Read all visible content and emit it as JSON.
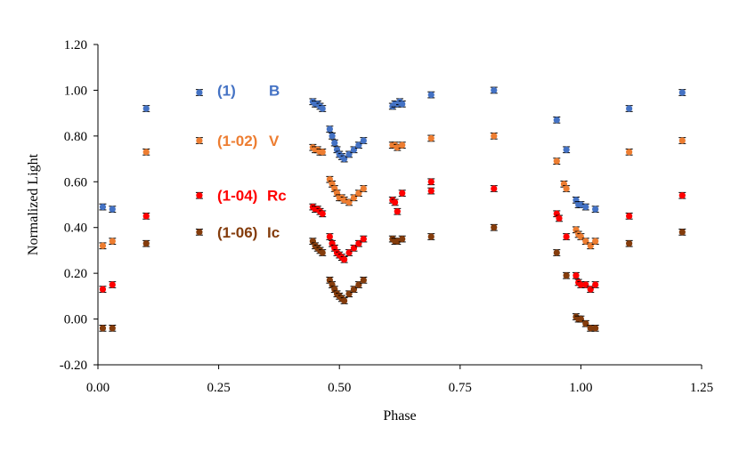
{
  "chart_data": {
    "type": "scatter",
    "title": "",
    "xlabel": "Phase",
    "ylabel": "Normalized Light",
    "xlim": [
      0.0,
      1.25
    ],
    "ylim": [
      -0.2,
      1.2
    ],
    "grid": false,
    "xticks": [
      "0.00",
      "0.25",
      "0.50",
      "0.75",
      "1.00",
      "1.25"
    ],
    "yticks": [
      "-0.20",
      "0.00",
      "0.20",
      "0.40",
      "0.60",
      "0.80",
      "1.00",
      "1.20"
    ],
    "legend": [
      {
        "label": "(1)",
        "band": "B",
        "color": "#4472C4"
      },
      {
        "label": "(1-02)",
        "band": "V",
        "color": "#ED7D31"
      },
      {
        "label": "(1-04)",
        "band": "Rc",
        "color": "#FF0000"
      },
      {
        "label": "(1-06)",
        "band": "Ic",
        "color": "#843C0C"
      }
    ],
    "series": [
      {
        "name": "B (1)",
        "color": "#4472C4",
        "points": [
          [
            0.01,
            0.49
          ],
          [
            0.03,
            0.48
          ],
          [
            0.1,
            0.92
          ],
          [
            0.21,
            0.99
          ],
          [
            0.445,
            0.95
          ],
          [
            0.45,
            0.94
          ],
          [
            0.455,
            0.94
          ],
          [
            0.46,
            0.93
          ],
          [
            0.465,
            0.92
          ],
          [
            0.48,
            0.83
          ],
          [
            0.485,
            0.8
          ],
          [
            0.49,
            0.77
          ],
          [
            0.495,
            0.74
          ],
          [
            0.5,
            0.72
          ],
          [
            0.505,
            0.71
          ],
          [
            0.51,
            0.7
          ],
          [
            0.52,
            0.72
          ],
          [
            0.53,
            0.74
          ],
          [
            0.54,
            0.76
          ],
          [
            0.55,
            0.78
          ],
          [
            0.61,
            0.93
          ],
          [
            0.615,
            0.94
          ],
          [
            0.62,
            0.94
          ],
          [
            0.625,
            0.95
          ],
          [
            0.63,
            0.94
          ],
          [
            0.69,
            0.98
          ],
          [
            0.82,
            1.0
          ],
          [
            0.95,
            0.87
          ],
          [
            0.97,
            0.74
          ],
          [
            0.99,
            0.52
          ],
          [
            0.995,
            0.5
          ],
          [
            1.0,
            0.5
          ],
          [
            1.01,
            0.49
          ],
          [
            1.03,
            0.48
          ],
          [
            1.1,
            0.92
          ],
          [
            1.21,
            0.99
          ]
        ]
      },
      {
        "name": "V (1-02)",
        "color": "#ED7D31",
        "points": [
          [
            0.01,
            0.32
          ],
          [
            0.03,
            0.34
          ],
          [
            0.1,
            0.73
          ],
          [
            0.21,
            0.78
          ],
          [
            0.445,
            0.75
          ],
          [
            0.45,
            0.74
          ],
          [
            0.455,
            0.74
          ],
          [
            0.46,
            0.73
          ],
          [
            0.465,
            0.73
          ],
          [
            0.48,
            0.61
          ],
          [
            0.485,
            0.59
          ],
          [
            0.49,
            0.57
          ],
          [
            0.495,
            0.55
          ],
          [
            0.5,
            0.53
          ],
          [
            0.505,
            0.53
          ],
          [
            0.51,
            0.52
          ],
          [
            0.52,
            0.51
          ],
          [
            0.53,
            0.53
          ],
          [
            0.54,
            0.55
          ],
          [
            0.55,
            0.57
          ],
          [
            0.61,
            0.76
          ],
          [
            0.615,
            0.76
          ],
          [
            0.62,
            0.75
          ],
          [
            0.63,
            0.76
          ],
          [
            0.69,
            0.79
          ],
          [
            0.82,
            0.8
          ],
          [
            0.95,
            0.69
          ],
          [
            0.965,
            0.59
          ],
          [
            0.97,
            0.57
          ],
          [
            0.99,
            0.39
          ],
          [
            0.995,
            0.37
          ],
          [
            1.0,
            0.36
          ],
          [
            1.01,
            0.34
          ],
          [
            1.02,
            0.32
          ],
          [
            1.03,
            0.34
          ],
          [
            1.1,
            0.73
          ],
          [
            1.21,
            0.78
          ]
        ]
      },
      {
        "name": "Rc (1-04)",
        "color": "#FF0000",
        "points": [
          [
            0.01,
            0.13
          ],
          [
            0.03,
            0.15
          ],
          [
            0.1,
            0.45
          ],
          [
            0.21,
            0.54
          ],
          [
            0.445,
            0.49
          ],
          [
            0.45,
            0.48
          ],
          [
            0.455,
            0.48
          ],
          [
            0.46,
            0.47
          ],
          [
            0.465,
            0.46
          ],
          [
            0.48,
            0.36
          ],
          [
            0.485,
            0.33
          ],
          [
            0.49,
            0.31
          ],
          [
            0.495,
            0.29
          ],
          [
            0.5,
            0.28
          ],
          [
            0.505,
            0.27
          ],
          [
            0.51,
            0.26
          ],
          [
            0.52,
            0.29
          ],
          [
            0.53,
            0.31
          ],
          [
            0.54,
            0.33
          ],
          [
            0.55,
            0.35
          ],
          [
            0.61,
            0.52
          ],
          [
            0.615,
            0.51
          ],
          [
            0.62,
            0.47
          ],
          [
            0.63,
            0.55
          ],
          [
            0.69,
            0.56
          ],
          [
            0.69,
            0.6
          ],
          [
            0.82,
            0.57
          ],
          [
            0.95,
            0.46
          ],
          [
            0.955,
            0.44
          ],
          [
            0.97,
            0.36
          ],
          [
            0.99,
            0.19
          ],
          [
            0.995,
            0.16
          ],
          [
            1.0,
            0.15
          ],
          [
            1.01,
            0.15
          ],
          [
            1.02,
            0.13
          ],
          [
            1.03,
            0.15
          ],
          [
            1.1,
            0.45
          ],
          [
            1.21,
            0.54
          ]
        ]
      },
      {
        "name": "Ic (1-06)",
        "color": "#843C0C",
        "points": [
          [
            0.01,
            -0.04
          ],
          [
            0.03,
            -0.04
          ],
          [
            0.1,
            0.33
          ],
          [
            0.21,
            0.38
          ],
          [
            0.445,
            0.34
          ],
          [
            0.45,
            0.32
          ],
          [
            0.455,
            0.31
          ],
          [
            0.46,
            0.3
          ],
          [
            0.465,
            0.29
          ],
          [
            0.48,
            0.17
          ],
          [
            0.485,
            0.15
          ],
          [
            0.49,
            0.13
          ],
          [
            0.495,
            0.11
          ],
          [
            0.5,
            0.1
          ],
          [
            0.505,
            0.09
          ],
          [
            0.51,
            0.08
          ],
          [
            0.52,
            0.11
          ],
          [
            0.53,
            0.13
          ],
          [
            0.54,
            0.15
          ],
          [
            0.55,
            0.17
          ],
          [
            0.61,
            0.35
          ],
          [
            0.615,
            0.34
          ],
          [
            0.62,
            0.34
          ],
          [
            0.63,
            0.35
          ],
          [
            0.69,
            0.36
          ],
          [
            0.82,
            0.4
          ],
          [
            0.95,
            0.29
          ],
          [
            0.97,
            0.19
          ],
          [
            0.99,
            0.01
          ],
          [
            0.995,
            0.0
          ],
          [
            1.0,
            0.0
          ],
          [
            1.01,
            -0.02
          ],
          [
            1.02,
            -0.04
          ],
          [
            1.03,
            -0.04
          ],
          [
            1.1,
            0.33
          ],
          [
            1.21,
            0.38
          ]
        ]
      }
    ]
  }
}
